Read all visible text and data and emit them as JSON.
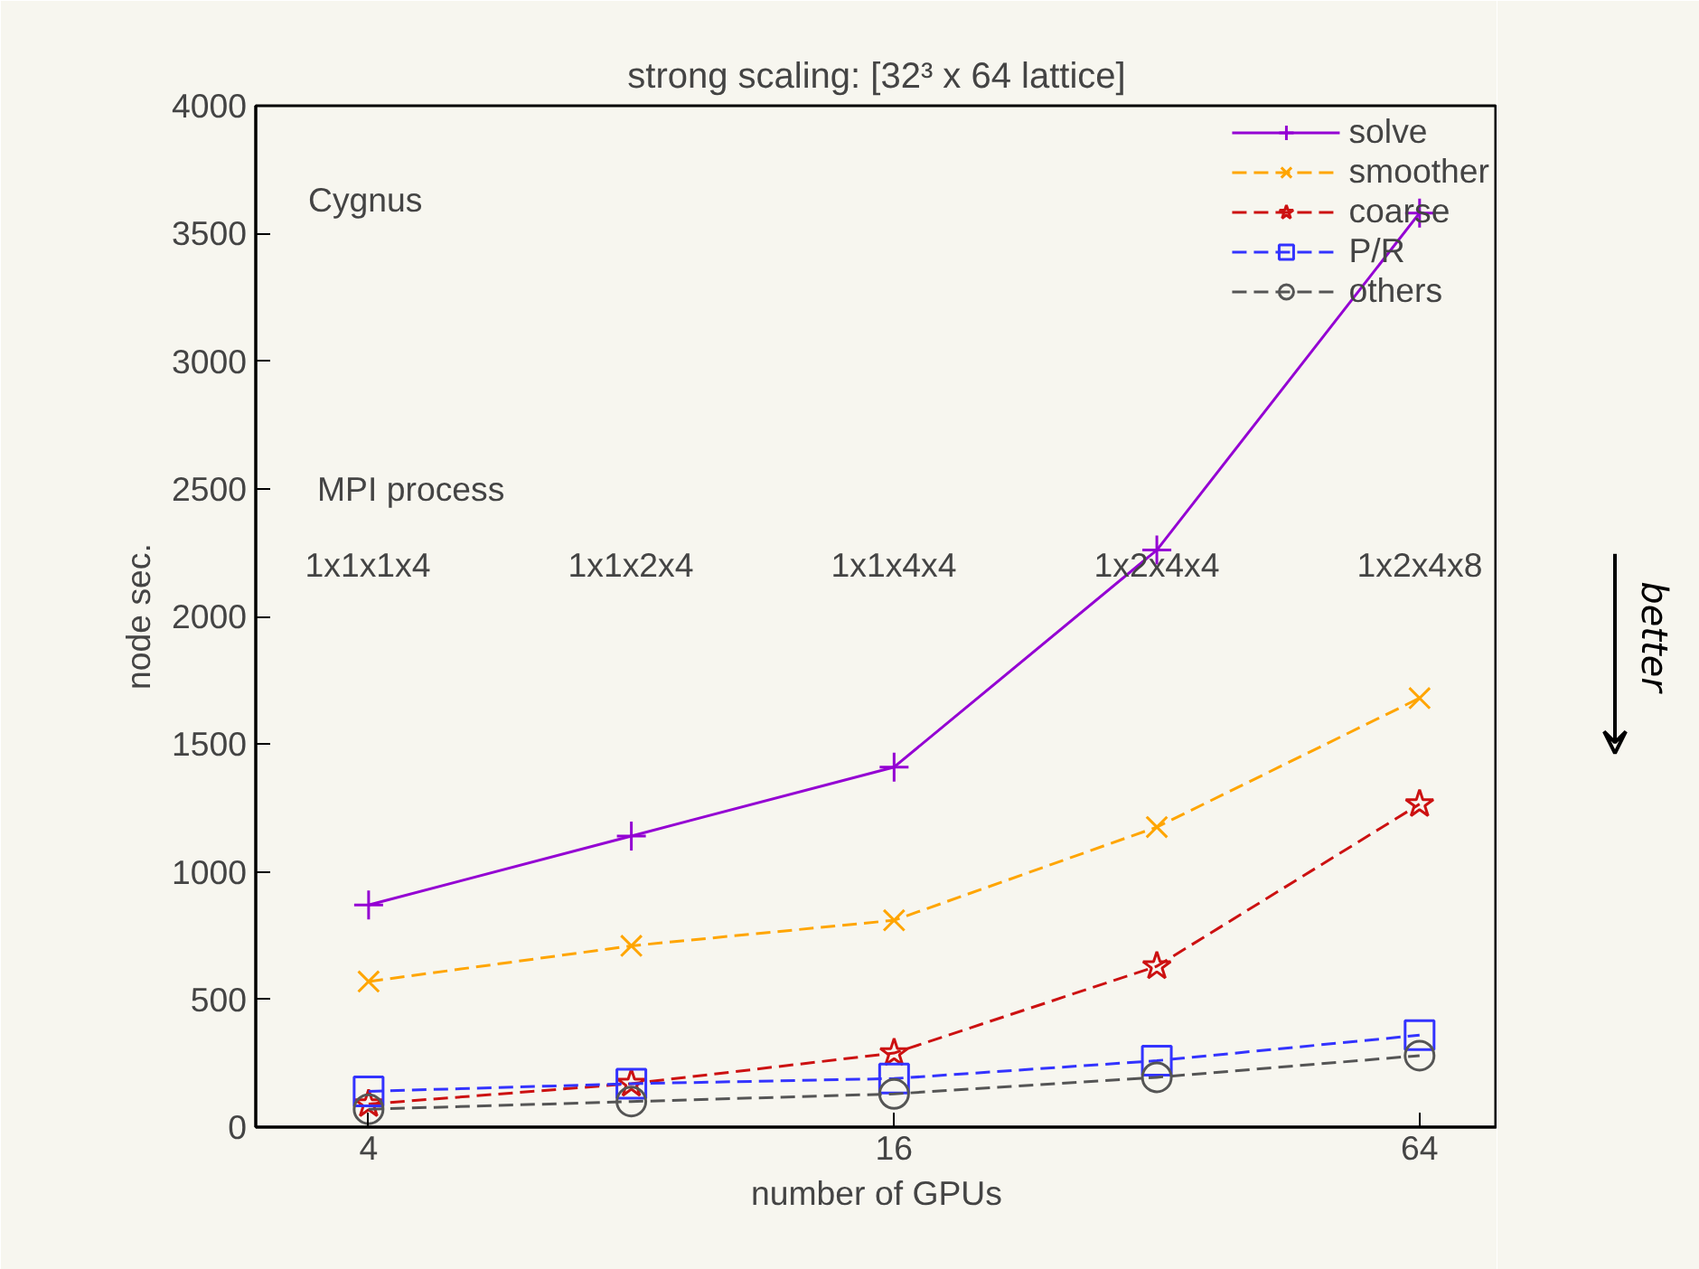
{
  "chart_data": {
    "type": "line",
    "title": "strong scaling: [32³ x 64 lattice]",
    "xlabel": "number of GPUs",
    "ylabel": "node sec.",
    "x": [
      4,
      8,
      16,
      32,
      64
    ],
    "log": "x",
    "xlim": [
      2.97,
      78.6
    ],
    "xticks": [
      4,
      16,
      64
    ],
    "ylim": [
      0,
      4000
    ],
    "yticks": [
      0,
      500,
      1000,
      1500,
      2000,
      2500,
      3000,
      3500,
      4000
    ],
    "grid": false,
    "legend": "top right",
    "series": [
      {
        "name": "solve",
        "color": "#9400d3",
        "marker": "cross",
        "line_style": "solid",
        "values": [
          870,
          1140,
          1410,
          2260,
          3580
        ]
      },
      {
        "name": "smoother",
        "color": "#ffa500",
        "marker": "x",
        "line_style": "dashed",
        "values": [
          570,
          710,
          810,
          1175,
          1680
        ]
      },
      {
        "name": "coarse",
        "color": "#cc1111",
        "marker": "star",
        "line_style": "dashed",
        "values": [
          90,
          170,
          290,
          630,
          1265
        ]
      },
      {
        "name": "P/R",
        "color": "#3333ff",
        "marker": "square",
        "line_style": "dashed",
        "values": [
          140,
          170,
          190,
          260,
          360
        ]
      },
      {
        "name": "others",
        "color": "#555555",
        "marker": "circle",
        "line_style": "dashed",
        "values": [
          70,
          100,
          130,
          195,
          280
        ]
      }
    ],
    "annotations": [
      "Cygnus",
      "MPI process",
      "1x1x1x4",
      "1x1x2x4",
      "1x1x4x4",
      "1x2x4x4",
      "1x2x4x8",
      "better"
    ]
  }
}
